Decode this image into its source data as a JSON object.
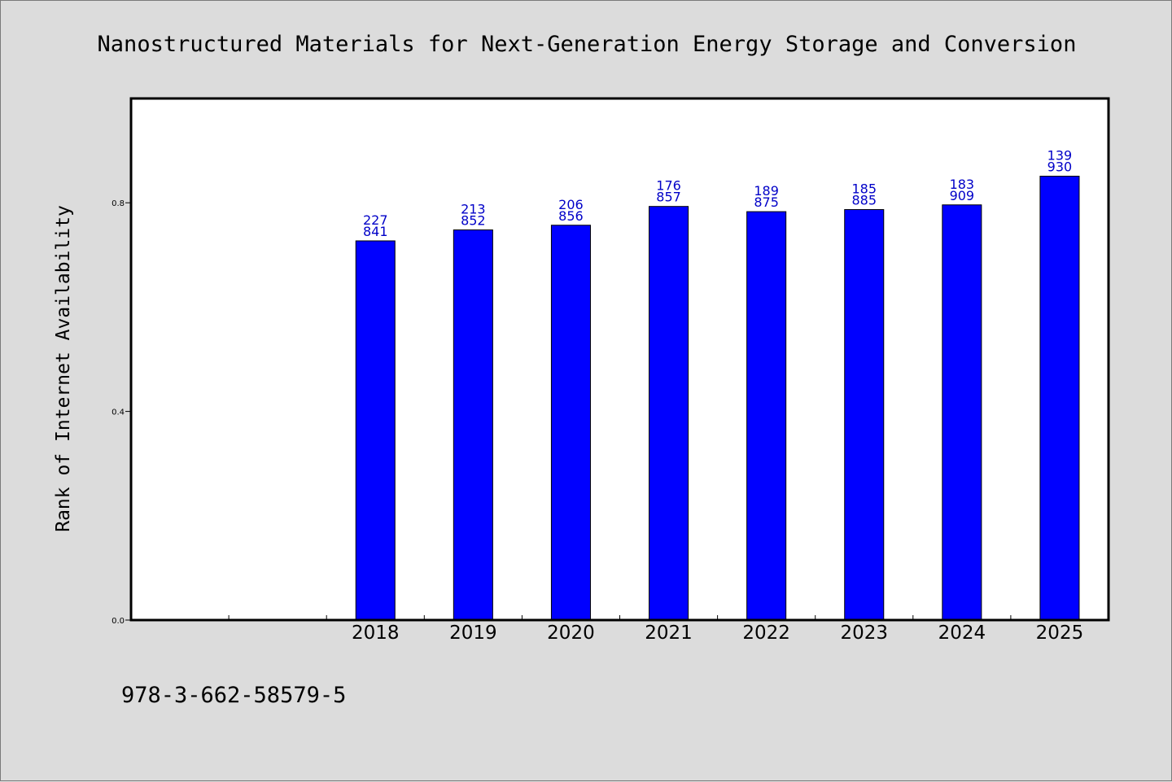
{
  "chart_data": {
    "type": "bar",
    "title": "Nanostructured Materials for Next-Generation Energy Storage and Conversion",
    "xlabel": "",
    "ylabel": "Rank of Internet Availability",
    "categories": [
      "2018",
      "2019",
      "2020",
      "2021",
      "2022",
      "2023",
      "2024",
      "2025"
    ],
    "values": [
      0.727,
      0.748,
      0.757,
      0.793,
      0.783,
      0.787,
      0.796,
      0.851
    ],
    "data_labels": [
      [
        "227",
        "841"
      ],
      [
        "213",
        "852"
      ],
      [
        "206",
        "856"
      ],
      [
        "176",
        "857"
      ],
      [
        "189",
        "875"
      ],
      [
        "185",
        "885"
      ],
      [
        "183",
        "909"
      ],
      [
        "139",
        "930"
      ]
    ],
    "yticks": [
      "0.0",
      "0.4",
      "0.8"
    ],
    "ylim": [
      0,
      1.0
    ],
    "grid": false,
    "bar_color": "#0000ff",
    "label_color": "#0000c8",
    "background_color": "#dcdcdc",
    "plot_background_color": "#ffffff"
  },
  "footer_note": "978-3-662-58579-5"
}
